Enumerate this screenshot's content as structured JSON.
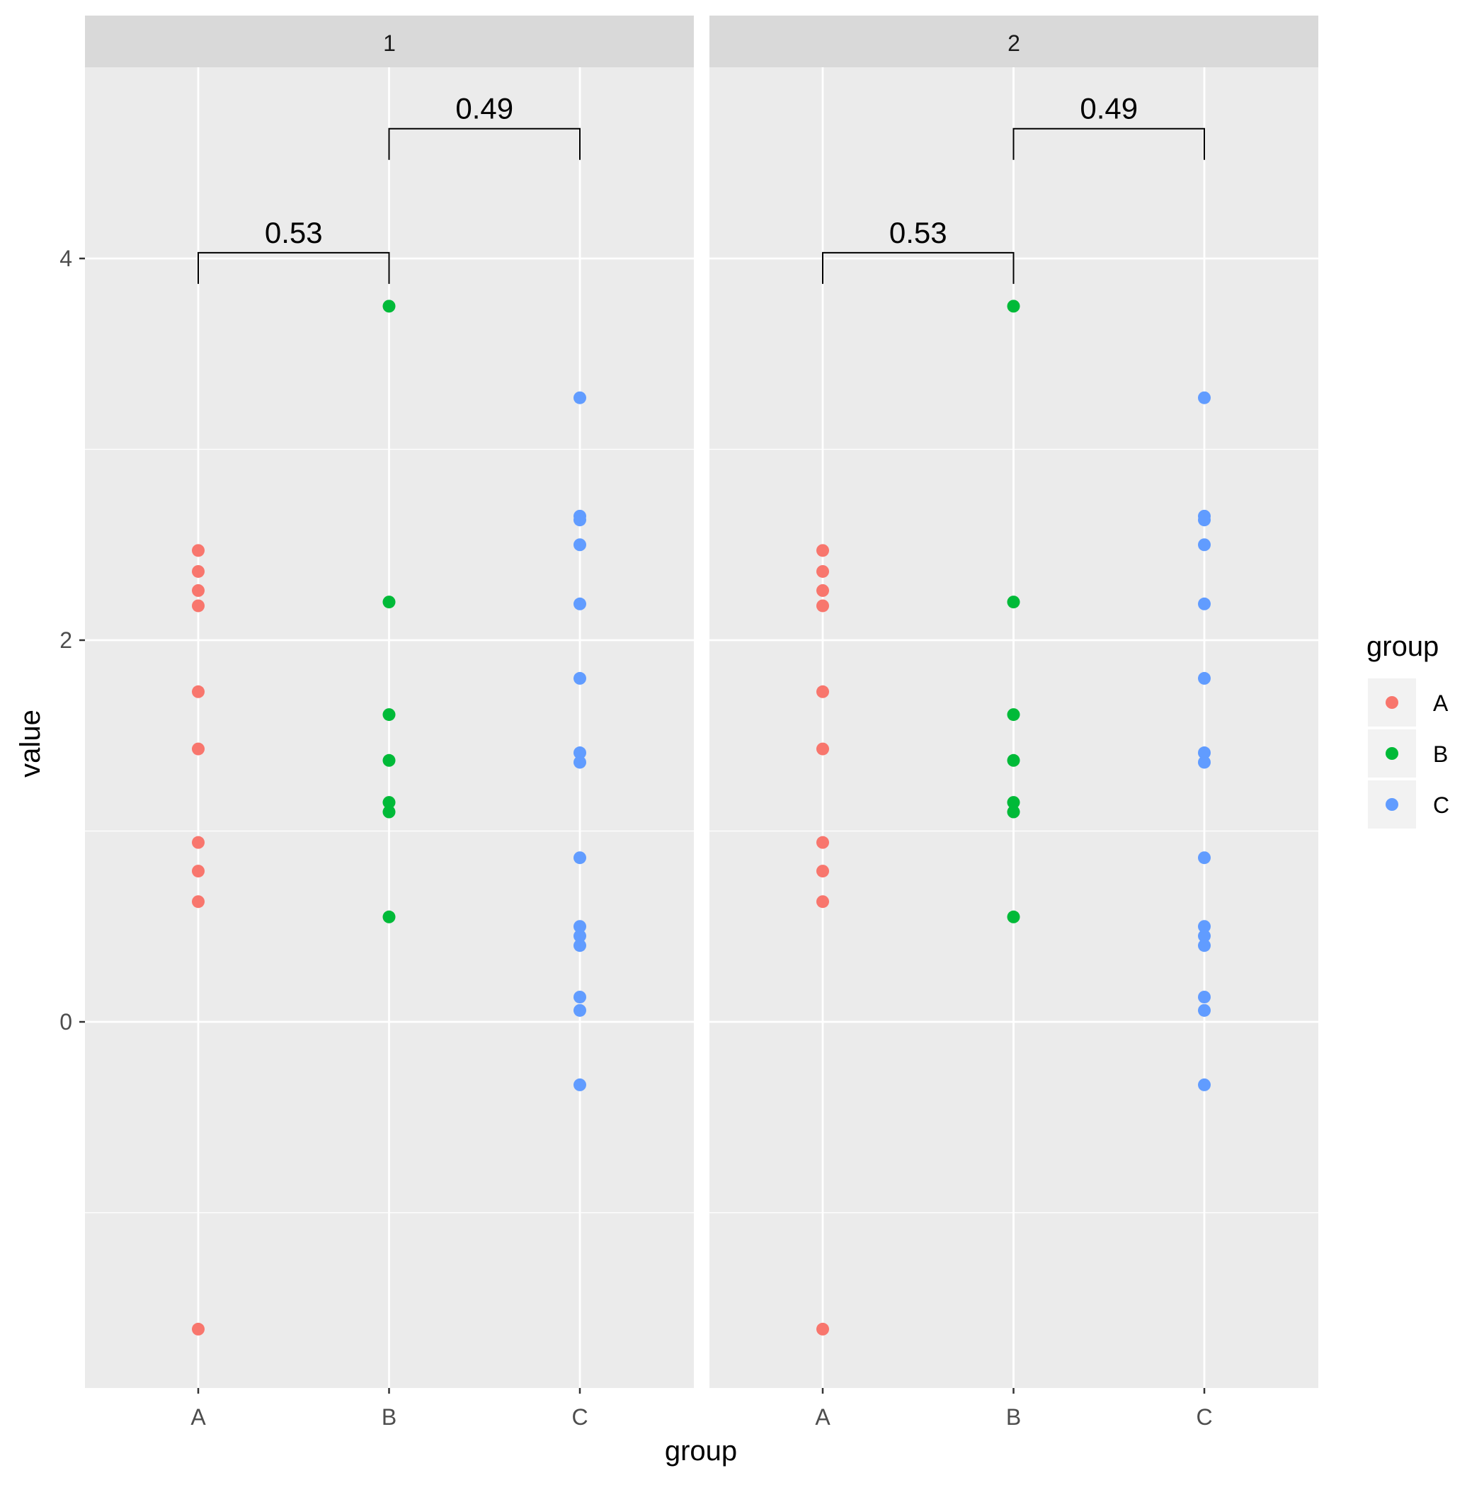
{
  "chart_data": {
    "type": "scatter",
    "xlabel": "group",
    "ylabel": "value",
    "categories": [
      "A",
      "B",
      "C"
    ],
    "ylim": [
      -1.9,
      5.3
    ],
    "y_ticks": [
      "0",
      "2",
      "4"
    ],
    "grid": true,
    "legend": {
      "title": "group",
      "position": "right",
      "entries": [
        "A",
        "B",
        "C"
      ]
    },
    "colors": {
      "A": "#F8766D",
      "B": "#00BA38",
      "C": "#619CFF"
    },
    "facets": [
      {
        "label": "1",
        "series": [
          {
            "name": "A",
            "values": [
              2.47,
              2.36,
              2.26,
              2.18,
              1.73,
              1.43,
              0.94,
              0.79,
              0.63,
              -1.61
            ]
          },
          {
            "name": "B",
            "values": [
              3.75,
              2.2,
              1.61,
              1.37,
              1.15,
              1.1,
              0.55
            ]
          },
          {
            "name": "C",
            "values": [
              3.27,
              2.65,
              2.63,
              2.5,
              2.19,
              1.8,
              1.41,
              1.36,
              0.86,
              0.5,
              0.45,
              0.4,
              0.13,
              0.06,
              -0.33
            ]
          }
        ],
        "comparisons": [
          {
            "groups": [
              "A",
              "B"
            ],
            "label": "0.53",
            "y": 4.03
          },
          {
            "groups": [
              "B",
              "C"
            ],
            "label": "0.49",
            "y": 4.68
          }
        ]
      },
      {
        "label": "2",
        "series": [
          {
            "name": "A",
            "values": [
              2.47,
              2.36,
              2.26,
              2.18,
              1.73,
              1.43,
              0.94,
              0.79,
              0.63,
              -1.61
            ]
          },
          {
            "name": "B",
            "values": [
              3.75,
              2.2,
              1.61,
              1.37,
              1.15,
              1.1,
              0.55
            ]
          },
          {
            "name": "C",
            "values": [
              3.27,
              2.65,
              2.63,
              2.5,
              2.19,
              1.8,
              1.41,
              1.36,
              0.86,
              0.5,
              0.45,
              0.4,
              0.13,
              0.06,
              -0.33
            ]
          }
        ],
        "comparisons": [
          {
            "groups": [
              "A",
              "B"
            ],
            "label": "0.53",
            "y": 4.03
          },
          {
            "groups": [
              "B",
              "C"
            ],
            "label": "0.49",
            "y": 4.68
          }
        ]
      }
    ]
  }
}
